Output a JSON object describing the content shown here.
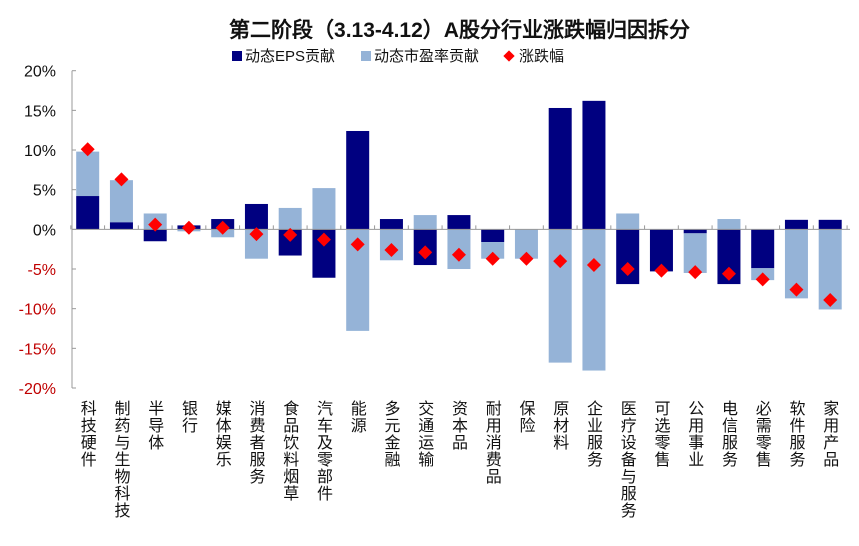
{
  "chart_data": {
    "type": "bar",
    "stacked": true,
    "title": "第二阶段（3.13-4.12）A股分行业涨跌幅归因拆分",
    "categories": [
      "科技硬件",
      "制药与生物科技",
      "半导体",
      "银行",
      "媒体娱乐",
      "消费者服务",
      "食品饮料烟草",
      "汽车及零部件",
      "能源",
      "多元金融",
      "交通运输",
      "资本品",
      "耐用消费品",
      "保险",
      "原材料",
      "企业服务",
      "医疗设备与服务",
      "可选零售",
      "公用事业",
      "电信服务",
      "必需零售",
      "软件服务",
      "家用产品"
    ],
    "series": [
      {
        "name": "动态EPS贡献",
        "kind": "bar",
        "color": "#000080",
        "values": [
          4.2,
          0.9,
          -1.5,
          0.5,
          1.3,
          3.2,
          -3.3,
          -6.1,
          12.4,
          1.3,
          -4.5,
          1.8,
          -1.6,
          0.0,
          15.3,
          16.2,
          -6.9,
          -5.3,
          -0.5,
          -6.9,
          -4.9,
          1.2,
          1.2
        ]
      },
      {
        "name": "动态市盈率贡献",
        "kind": "bar",
        "color": "#95B3D7",
        "values": [
          5.6,
          5.3,
          2.0,
          -0.25,
          -1.0,
          -3.7,
          2.7,
          5.2,
          -12.8,
          -3.9,
          1.8,
          -5.0,
          -2.1,
          -3.7,
          -16.8,
          -17.8,
          2.0,
          0.0,
          -5.0,
          1.3,
          -1.5,
          -8.7,
          -10.1
        ]
      },
      {
        "name": "涨跌幅",
        "kind": "marker",
        "color": "#FF0000",
        "values": [
          10.1,
          6.3,
          0.6,
          0.2,
          0.2,
          -0.6,
          -0.7,
          -1.3,
          -1.9,
          -2.6,
          -2.9,
          -3.2,
          -3.7,
          -3.7,
          -4.0,
          -4.5,
          -5.0,
          -5.2,
          -5.4,
          -5.6,
          -6.3,
          -7.6,
          -8.9
        ]
      }
    ],
    "ylim": [
      -20,
      20
    ],
    "yticks": [
      "20%",
      "15%",
      "10%",
      "5%",
      "0%",
      "-5%",
      "-10%",
      "-15%",
      "-20%"
    ],
    "ytick_values": [
      20,
      15,
      10,
      5,
      0,
      -5,
      -10,
      -15,
      -20
    ],
    "negative_tick_color": "#C00000",
    "legend_position": "top",
    "grid": false
  }
}
